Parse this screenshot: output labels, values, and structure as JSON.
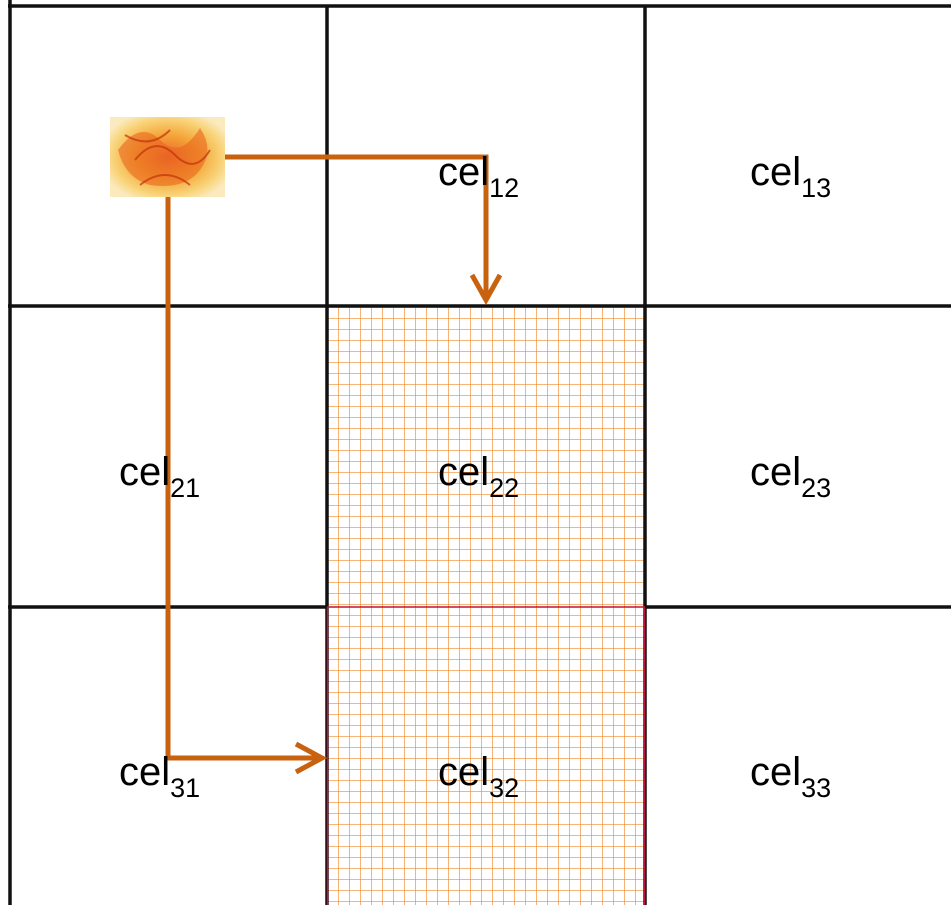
{
  "cells": [
    {
      "text": "cel",
      "sub": "12"
    },
    {
      "text": "cel",
      "sub": "13"
    },
    {
      "text": "cel",
      "sub": "21"
    },
    {
      "text": "cel",
      "sub": "22"
    },
    {
      "text": "cel",
      "sub": "23"
    },
    {
      "text": "cel",
      "sub": "31"
    },
    {
      "text": "cel",
      "sub": "32"
    },
    {
      "text": "cel",
      "sub": "33"
    }
  ]
}
